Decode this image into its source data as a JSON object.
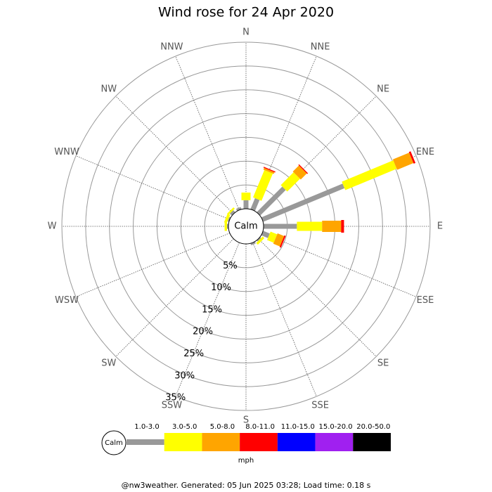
{
  "chart_data": {
    "type": "windrose",
    "title": "Wind rose for 24 Apr 2020",
    "center_label": "Calm",
    "directions": [
      "N",
      "NNE",
      "NE",
      "ENE",
      "E",
      "ESE",
      "SE",
      "SSE",
      "S",
      "SSW",
      "SW",
      "WSW",
      "W",
      "WNW",
      "NW",
      "NNW"
    ],
    "rlim": [
      0,
      35
    ],
    "rticks": [
      {
        "value": 5,
        "label": "5%"
      },
      {
        "value": 10,
        "label": "10%"
      },
      {
        "value": 15,
        "label": "15%"
      },
      {
        "value": 20,
        "label": "20%"
      },
      {
        "value": 25,
        "label": "25%"
      },
      {
        "value": 30,
        "label": "30%"
      },
      {
        "value": 35,
        "label": "35%"
      }
    ],
    "grid": true,
    "series": [
      {
        "name": "1.0-3.0",
        "color": "#999999",
        "values": [
          1.8,
          2.5,
          7.6,
          18.5,
          7.0,
          1.5,
          0.3,
          0.4,
          0,
          0,
          0,
          0,
          0.3,
          0.3,
          0.6,
          0.5
        ]
      },
      {
        "name": "3.0-5.0",
        "color": "#ffff00",
        "values": [
          1.6,
          6.2,
          3.8,
          11.7,
          5.3,
          1.5,
          0.5,
          0,
          0,
          0,
          0,
          0,
          0.5,
          0.6,
          0.4,
          0
        ]
      },
      {
        "name": "5.0-8.0",
        "color": "#ffa500",
        "values": [
          0,
          0.4,
          1.8,
          3.7,
          4.0,
          1.5,
          0,
          0,
          0,
          0,
          0,
          0,
          0,
          0,
          0,
          0
        ]
      },
      {
        "name": "8.0-11.0",
        "color": "#ff0000",
        "values": [
          0,
          0.2,
          0.2,
          0.4,
          0.6,
          0.3,
          0,
          0,
          0,
          0,
          0,
          0,
          0,
          0,
          0,
          0
        ]
      },
      {
        "name": "11.0-15.0",
        "color": "#0000ff",
        "values": [
          0,
          0,
          0,
          0,
          0,
          0,
          0,
          0,
          0,
          0,
          0,
          0,
          0,
          0,
          0,
          0
        ]
      },
      {
        "name": "15.0-20.0",
        "color": "#a020f0",
        "values": [
          0,
          0,
          0,
          0,
          0,
          0,
          0,
          0,
          0,
          0,
          0,
          0,
          0,
          0,
          0,
          0
        ]
      },
      {
        "name": "20.0-50.0",
        "color": "#000000",
        "values": [
          0,
          0,
          0,
          0,
          0,
          0,
          0,
          0,
          0,
          0,
          0,
          0,
          0,
          0,
          0,
          0
        ]
      }
    ],
    "legend_unit": "mph",
    "footer": "@nw3weather.  Generated: 05 Jun 2025 03:28; Load time: 0.18 s"
  }
}
